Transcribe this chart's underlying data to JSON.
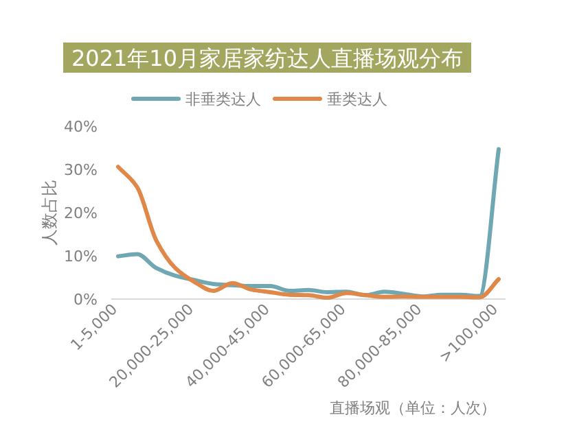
{
  "chart_data": {
    "type": "line",
    "title": "2021年10月家居家纺达人直播场观分布",
    "ylabel": "人数占比",
    "xlabel": "直播场观（单位：人次）",
    "categories": [
      "1-5,000",
      null,
      null,
      null,
      "20,000-25,000",
      null,
      null,
      null,
      "40,000-45,000",
      null,
      null,
      null,
      "60,000-65,000",
      null,
      null,
      null,
      "80,000-85,000",
      null,
      null,
      null,
      ">100,000"
    ],
    "series": [
      {
        "name": "非垂类达人",
        "color": "#6fa8b3",
        "values": [
          9.9,
          10.4,
          7.2,
          5.4,
          4.4,
          3.5,
          3.2,
          3.0,
          3.0,
          1.9,
          2.1,
          1.6,
          1.7,
          0.9,
          1.7,
          1.2,
          0.6,
          1.0,
          1.0,
          0.7,
          34.7
        ]
      },
      {
        "name": "垂类达人",
        "color": "#e0884a",
        "values": [
          30.6,
          25.9,
          13.6,
          7.2,
          4.0,
          1.9,
          3.7,
          2.2,
          1.6,
          1.0,
          0.9,
          0.3,
          1.4,
          0.9,
          0.5,
          0.6,
          0.5,
          0.5,
          0.5,
          0.4,
          4.6
        ]
      }
    ],
    "ylim": [
      0,
      40
    ],
    "yticks": [
      {
        "value": 0,
        "label": "0%"
      },
      {
        "value": 10,
        "label": "10%"
      },
      {
        "value": 20,
        "label": "20%"
      },
      {
        "value": 30,
        "label": "30%"
      },
      {
        "value": 40,
        "label": "40%"
      }
    ],
    "legend": "top",
    "grid": false,
    "marker": "none",
    "line_style": "solid"
  }
}
